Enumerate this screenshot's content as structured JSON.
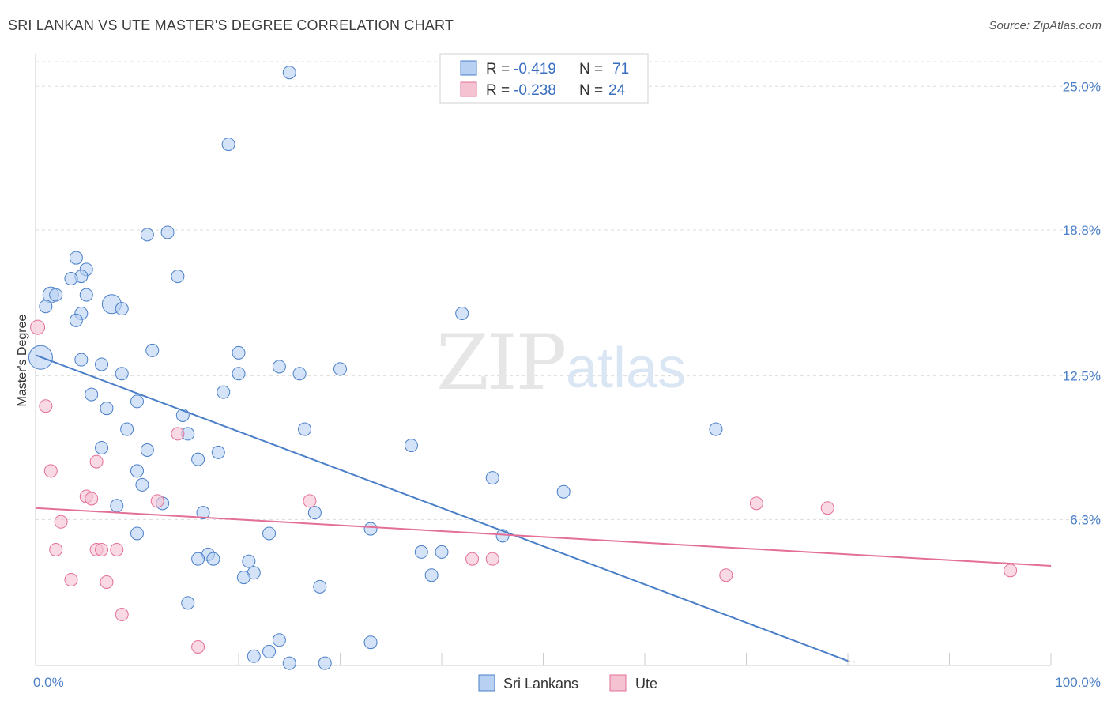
{
  "title": "SRI LANKAN VS UTE MASTER'S DEGREE CORRELATION CHART",
  "source": "Source: ZipAtlas.com",
  "colors": {
    "blue": "#4a7fc8",
    "blue_fill": "#b8d1f3",
    "pink": "#e36f96",
    "pink_fill": "#f5c2d2",
    "grid": "#dddddd"
  },
  "legend": {
    "rows": [
      {
        "r_label": "R =",
        "r_value": "-0.419",
        "n_label": "N =",
        "n_value": "71"
      },
      {
        "r_label": "R =",
        "r_value": "-0.238",
        "n_label": "N =",
        "n_value": "24"
      }
    ]
  },
  "bottom_legend": {
    "series1": "Sri Lankans",
    "series2": "Ute"
  },
  "chart_data": {
    "type": "scatter",
    "title": "SRI LANKAN VS UTE MASTER'S DEGREE CORRELATION CHART",
    "ylabel": "Master's Degree",
    "xlabel": "",
    "x_tick_labels": [
      "0.0%",
      "100.0%"
    ],
    "y_tick_labels": [
      "25.0%",
      "18.8%",
      "12.5%",
      "6.3%"
    ],
    "y_ticks": [
      25.0,
      18.8,
      12.5,
      6.3
    ],
    "xlim": [
      0,
      100
    ],
    "ylim": [
      0,
      26
    ],
    "grid": true,
    "legend_position": "top-center",
    "series": [
      {
        "name": "Sri Lankans",
        "color": "#4a7fc8",
        "r": -0.419,
        "n": 71,
        "trend": {
          "x0": 0,
          "y0": 13.4,
          "x1": 80,
          "y1": 0.2
        },
        "points": [
          [
            25,
            25.6
          ],
          [
            19,
            22.5
          ],
          [
            11,
            18.6
          ],
          [
            13,
            18.7
          ],
          [
            4,
            17.6
          ],
          [
            5,
            17.1
          ],
          [
            4.5,
            16.8
          ],
          [
            3.5,
            16.7
          ],
          [
            14,
            16.8
          ],
          [
            1.5,
            16.0
          ],
          [
            2,
            16.0
          ],
          [
            5,
            16.0
          ],
          [
            1,
            15.5
          ],
          [
            7.5,
            15.6
          ],
          [
            8.5,
            15.4
          ],
          [
            4.5,
            15.2
          ],
          [
            4,
            14.9
          ],
          [
            42,
            15.2
          ],
          [
            11.5,
            13.6
          ],
          [
            20,
            13.5
          ],
          [
            0.5,
            13.3
          ],
          [
            4.5,
            13.2
          ],
          [
            6.5,
            13.0
          ],
          [
            24,
            12.9
          ],
          [
            8.5,
            12.6
          ],
          [
            20,
            12.6
          ],
          [
            26,
            12.6
          ],
          [
            30,
            12.8
          ],
          [
            5.5,
            11.7
          ],
          [
            18.5,
            11.8
          ],
          [
            10,
            11.4
          ],
          [
            7,
            11.1
          ],
          [
            14.5,
            10.8
          ],
          [
            9,
            10.2
          ],
          [
            26.5,
            10.2
          ],
          [
            15,
            10.0
          ],
          [
            67,
            10.2
          ],
          [
            6.5,
            9.4
          ],
          [
            11,
            9.3
          ],
          [
            18,
            9.2
          ],
          [
            37,
            9.5
          ],
          [
            16,
            8.9
          ],
          [
            10,
            8.4
          ],
          [
            45,
            8.1
          ],
          [
            10.5,
            7.8
          ],
          [
            52,
            7.5
          ],
          [
            12.5,
            7.0
          ],
          [
            8,
            6.9
          ],
          [
            16.5,
            6.6
          ],
          [
            27.5,
            6.6
          ],
          [
            33,
            5.9
          ],
          [
            10,
            5.7
          ],
          [
            23,
            5.7
          ],
          [
            46,
            5.6
          ],
          [
            17,
            4.8
          ],
          [
            38,
            4.9
          ],
          [
            40,
            4.9
          ],
          [
            16,
            4.6
          ],
          [
            17.5,
            4.6
          ],
          [
            21,
            4.5
          ],
          [
            21.5,
            4.0
          ],
          [
            39,
            3.9
          ],
          [
            20.5,
            3.8
          ],
          [
            28,
            3.4
          ],
          [
            15,
            2.7
          ],
          [
            24,
            1.1
          ],
          [
            33,
            1.0
          ],
          [
            23,
            0.6
          ],
          [
            21.5,
            0.4
          ],
          [
            25,
            0.1
          ],
          [
            28.5,
            0.1
          ]
        ]
      },
      {
        "name": "Ute",
        "color": "#e36f96",
        "r": -0.238,
        "n": 24,
        "trend": {
          "x0": 0,
          "y0": 6.8,
          "x1": 100,
          "y1": 4.3
        },
        "points": [
          [
            0.2,
            14.6
          ],
          [
            1,
            11.2
          ],
          [
            14,
            10.0
          ],
          [
            6,
            8.8
          ],
          [
            1.5,
            8.4
          ],
          [
            5,
            7.3
          ],
          [
            5.5,
            7.2
          ],
          [
            12,
            7.1
          ],
          [
            27,
            7.1
          ],
          [
            71,
            7.0
          ],
          [
            78,
            6.8
          ],
          [
            2.5,
            6.2
          ],
          [
            2,
            5.0
          ],
          [
            6,
            5.0
          ],
          [
            6.5,
            5.0
          ],
          [
            8,
            5.0
          ],
          [
            43,
            4.6
          ],
          [
            45,
            4.6
          ],
          [
            3.5,
            3.7
          ],
          [
            7,
            3.6
          ],
          [
            68,
            3.9
          ],
          [
            96,
            4.1
          ],
          [
            8.5,
            2.2
          ],
          [
            16,
            0.8
          ]
        ]
      }
    ]
  }
}
